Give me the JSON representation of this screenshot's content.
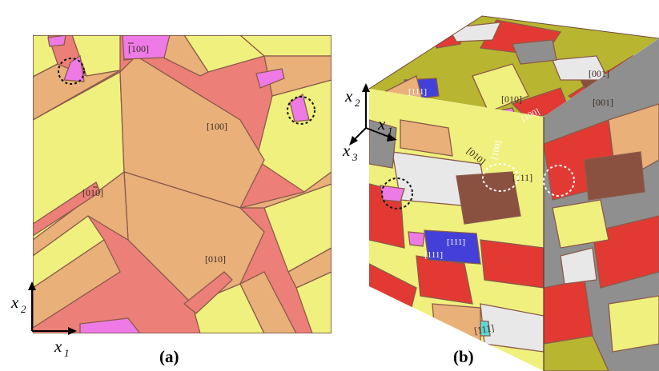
{
  "panel_a": {
    "labels": {
      "bar100": "[100]",
      "l100": "[100]",
      "l010bar": "[010]",
      "l010": "[010]"
    },
    "axes": {
      "x1": "x",
      "x1_sub": "1",
      "x2": "x",
      "x2_sub": "2"
    },
    "caption": "(a)"
  },
  "panel_b": {
    "labels": {
      "l001": "[001]",
      "l001bar": "[001]",
      "l0bar10": "[010]",
      "l100": "[100]",
      "l010": "[010]",
      "l100v": "[100]",
      "l111bar": "[111]",
      "l111": "[111]",
      "l111c": "[111]",
      "l111b": "[111]",
      "l111d": "[111]"
    },
    "axes": {
      "x1": "x",
      "x1_sub": "1",
      "x2": "x",
      "x2_sub": "2",
      "x3": "x",
      "x3_sub": "3"
    },
    "caption": "(b)"
  },
  "colors": {
    "salmon": "#ec7f78",
    "tan": "#e9b07a",
    "yellow": "#eff07e",
    "magenta": "#ee7ae6",
    "red": "#e23a33",
    "blue": "#4240d8",
    "gray": "#8f8f8f",
    "white": "#e8e8e8",
    "olive": "#b8b530",
    "brown": "#8a5040",
    "cyan": "#5fd8d8"
  }
}
